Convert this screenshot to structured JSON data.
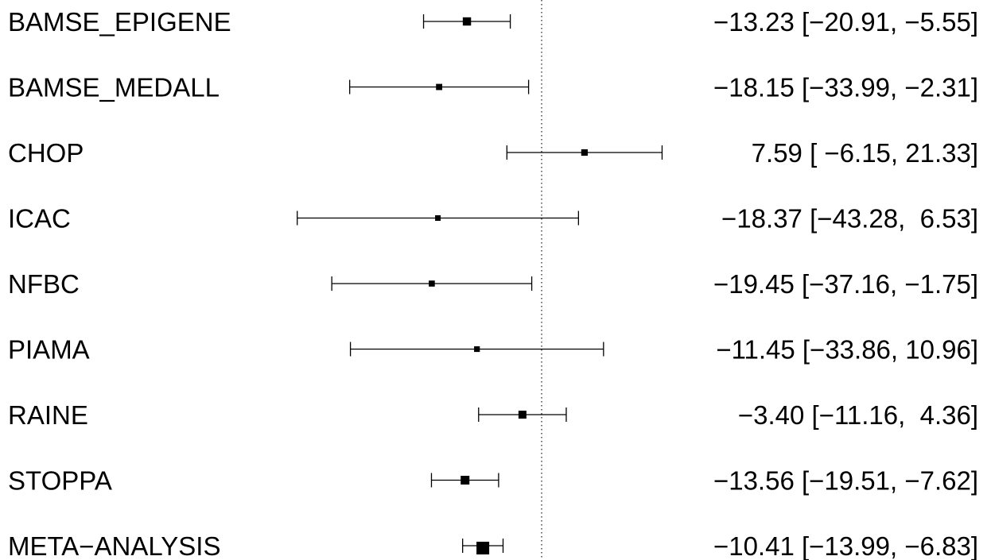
{
  "chart_data": {
    "type": "forest",
    "title": "",
    "xlabel": "",
    "ylabel": "",
    "reference_line": 0,
    "xlim": [
      -45,
      22
    ],
    "studies": [
      {
        "label": "BAMSE_EPIGENE",
        "estimate": -13.23,
        "lower": -20.91,
        "upper": -5.55,
        "ci_text": "−13.23 [−20.91, −5.55]",
        "weight": 0.22
      },
      {
        "label": "BAMSE_MEDALL",
        "estimate": -18.15,
        "lower": -33.99,
        "upper": -2.31,
        "ci_text": "−18.15 [−33.99, −2.31]",
        "weight": 0.09
      },
      {
        "label": "CHOP",
        "estimate": 7.59,
        "lower": -6.15,
        "upper": 21.33,
        "ci_text": "7.59 [ −6.15, 21.33]",
        "weight": 0.11
      },
      {
        "label": "ICAC",
        "estimate": -18.37,
        "lower": -43.28,
        "upper": 6.53,
        "ci_text": "−18.37 [−43.28,  6.53]",
        "weight": 0.05
      },
      {
        "label": "NFBC",
        "estimate": -19.45,
        "lower": -37.16,
        "upper": -1.75,
        "ci_text": "−19.45 [−37.16, −1.75]",
        "weight": 0.08
      },
      {
        "label": "PIAMA",
        "estimate": -11.45,
        "lower": -33.86,
        "upper": 10.96,
        "ci_text": "−11.45 [−33.86, 10.96]",
        "weight": 0.06
      },
      {
        "label": "RAINE",
        "estimate": -3.4,
        "lower": -11.16,
        "upper": 4.36,
        "ci_text": "−3.40 [−11.16,  4.36]",
        "weight": 0.2
      },
      {
        "label": "STOPPA",
        "estimate": -13.56,
        "lower": -19.51,
        "upper": -7.62,
        "ci_text": "−13.56 [−19.51, −7.62]",
        "weight": 0.25
      },
      {
        "label": "META−ANALYSIS",
        "estimate": -10.41,
        "lower": -13.99,
        "upper": -6.83,
        "ci_text": "−10.41 [−13.99, −6.83]",
        "weight": 0.5
      }
    ]
  }
}
